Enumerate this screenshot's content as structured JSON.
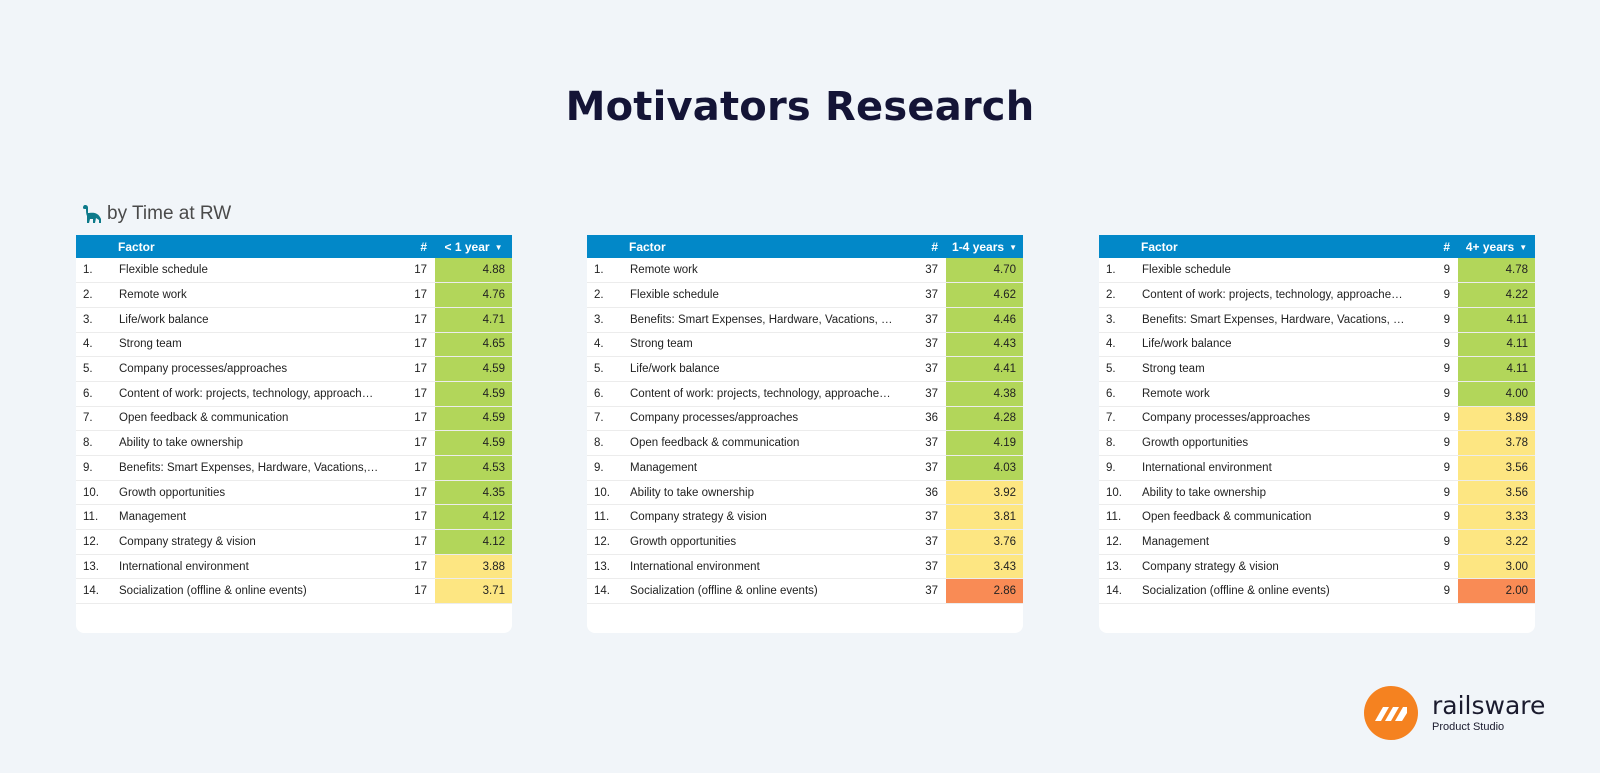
{
  "page_title": "Motivators Research",
  "section_title": "by Time at RW",
  "colors": {
    "header": "#0288c8",
    "high": "#b2d65a",
    "mid": "#fde682",
    "low": "#f98b55"
  },
  "columns": {
    "factor": "Factor",
    "count": "#"
  },
  "tables": [
    {
      "score_header": "< 1 year",
      "rows": [
        {
          "idx": "1.",
          "factor": "Flexible schedule",
          "count": "17",
          "score": "4.88",
          "level": "high"
        },
        {
          "idx": "2.",
          "factor": "Remote work",
          "count": "17",
          "score": "4.76",
          "level": "high"
        },
        {
          "idx": "3.",
          "factor": "Life/work balance",
          "count": "17",
          "score": "4.71",
          "level": "high"
        },
        {
          "idx": "4.",
          "factor": "Strong team",
          "count": "17",
          "score": "4.65",
          "level": "high"
        },
        {
          "idx": "5.",
          "factor": "Company processes/approaches",
          "count": "17",
          "score": "4.59",
          "level": "high"
        },
        {
          "idx": "6.",
          "factor": "Content of work: projects, technology, approach…",
          "count": "17",
          "score": "4.59",
          "level": "high"
        },
        {
          "idx": "7.",
          "factor": "Open feedback & communication",
          "count": "17",
          "score": "4.59",
          "level": "high"
        },
        {
          "idx": "8.",
          "factor": "Ability to take ownership",
          "count": "17",
          "score": "4.59",
          "level": "high"
        },
        {
          "idx": "9.",
          "factor": "Benefits: Smart Expenses, Hardware, Vacations,…",
          "count": "17",
          "score": "4.53",
          "level": "high"
        },
        {
          "idx": "10.",
          "factor": "Growth opportunities",
          "count": "17",
          "score": "4.35",
          "level": "high"
        },
        {
          "idx": "11.",
          "factor": "Management",
          "count": "17",
          "score": "4.12",
          "level": "high"
        },
        {
          "idx": "12.",
          "factor": "Company strategy & vision",
          "count": "17",
          "score": "4.12",
          "level": "high"
        },
        {
          "idx": "13.",
          "factor": "International environment",
          "count": "17",
          "score": "3.88",
          "level": "mid"
        },
        {
          "idx": "14.",
          "factor": "Socialization (offline & online events)",
          "count": "17",
          "score": "3.71",
          "level": "mid"
        }
      ]
    },
    {
      "score_header": "1-4 years",
      "rows": [
        {
          "idx": "1.",
          "factor": "Remote work",
          "count": "37",
          "score": "4.70",
          "level": "high"
        },
        {
          "idx": "2.",
          "factor": "Flexible schedule",
          "count": "37",
          "score": "4.62",
          "level": "high"
        },
        {
          "idx": "3.",
          "factor": "Benefits: Smart Expenses, Hardware, Vacations, …",
          "count": "37",
          "score": "4.46",
          "level": "high"
        },
        {
          "idx": "4.",
          "factor": "Strong team",
          "count": "37",
          "score": "4.43",
          "level": "high"
        },
        {
          "idx": "5.",
          "factor": "Life/work balance",
          "count": "37",
          "score": "4.41",
          "level": "high"
        },
        {
          "idx": "6.",
          "factor": "Content of work: projects, technology, approache…",
          "count": "37",
          "score": "4.38",
          "level": "high"
        },
        {
          "idx": "7.",
          "factor": "Company processes/approaches",
          "count": "36",
          "score": "4.28",
          "level": "high"
        },
        {
          "idx": "8.",
          "factor": "Open feedback & communication",
          "count": "37",
          "score": "4.19",
          "level": "high"
        },
        {
          "idx": "9.",
          "factor": "Management",
          "count": "37",
          "score": "4.03",
          "level": "high"
        },
        {
          "idx": "10.",
          "factor": "Ability to take ownership",
          "count": "36",
          "score": "3.92",
          "level": "mid"
        },
        {
          "idx": "11.",
          "factor": "Company strategy & vision",
          "count": "37",
          "score": "3.81",
          "level": "mid"
        },
        {
          "idx": "12.",
          "factor": "Growth opportunities",
          "count": "37",
          "score": "3.76",
          "level": "mid"
        },
        {
          "idx": "13.",
          "factor": "International environment",
          "count": "37",
          "score": "3.43",
          "level": "mid"
        },
        {
          "idx": "14.",
          "factor": "Socialization (offline & online events)",
          "count": "37",
          "score": "2.86",
          "level": "low"
        }
      ]
    },
    {
      "score_header": "4+ years",
      "rows": [
        {
          "idx": "1.",
          "factor": "Flexible schedule",
          "count": "9",
          "score": "4.78",
          "level": "high"
        },
        {
          "idx": "2.",
          "factor": "Content of work: projects, technology, approache…",
          "count": "9",
          "score": "4.22",
          "level": "high"
        },
        {
          "idx": "3.",
          "factor": "Benefits: Smart Expenses, Hardware, Vacations, …",
          "count": "9",
          "score": "4.11",
          "level": "high"
        },
        {
          "idx": "4.",
          "factor": "Life/work balance",
          "count": "9",
          "score": "4.11",
          "level": "high"
        },
        {
          "idx": "5.",
          "factor": "Strong team",
          "count": "9",
          "score": "4.11",
          "level": "high"
        },
        {
          "idx": "6.",
          "factor": "Remote work",
          "count": "9",
          "score": "4.00",
          "level": "high"
        },
        {
          "idx": "7.",
          "factor": "Company processes/approaches",
          "count": "9",
          "score": "3.89",
          "level": "mid"
        },
        {
          "idx": "8.",
          "factor": "Growth opportunities",
          "count": "9",
          "score": "3.78",
          "level": "mid"
        },
        {
          "idx": "9.",
          "factor": "International environment",
          "count": "9",
          "score": "3.56",
          "level": "mid"
        },
        {
          "idx": "10.",
          "factor": "Ability to take ownership",
          "count": "9",
          "score": "3.56",
          "level": "mid"
        },
        {
          "idx": "11.",
          "factor": "Open feedback & communication",
          "count": "9",
          "score": "3.33",
          "level": "mid"
        },
        {
          "idx": "12.",
          "factor": "Management",
          "count": "9",
          "score": "3.22",
          "level": "mid"
        },
        {
          "idx": "13.",
          "factor": "Company strategy & vision",
          "count": "9",
          "score": "3.00",
          "level": "mid"
        },
        {
          "idx": "14.",
          "factor": "Socialization (offline & online events)",
          "count": "9",
          "score": "2.00",
          "level": "low"
        }
      ]
    }
  ],
  "logo": {
    "name": "railsware",
    "tagline": "Product Studio",
    "icon": "railsware-logo-icon"
  },
  "icons": {
    "section": "dinosaur-icon",
    "sort": "caret-down-icon"
  }
}
